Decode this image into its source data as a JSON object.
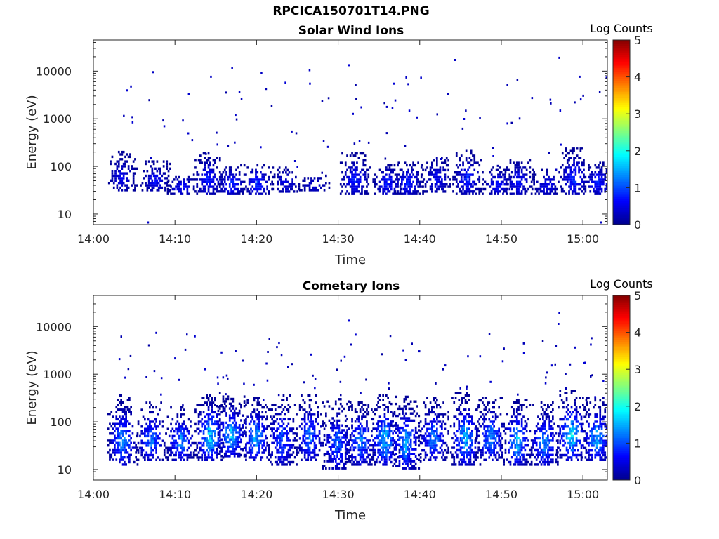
{
  "page": {
    "title": "RPCICA150701T14.PNG"
  },
  "colors": {
    "colormap": [
      "#00008f",
      "#0000ff",
      "#0080ff",
      "#00ffff",
      "#80ff80",
      "#ffff00",
      "#ff8000",
      "#ff0000",
      "#800000"
    ],
    "axis": "#262626"
  },
  "chart_data": [
    {
      "type": "heatmap",
      "title": "Solar Wind Ions",
      "xlabel": "Time",
      "ylabel": "Energy (eV)",
      "x_ticks": [
        "14:00",
        "14:10",
        "14:20",
        "14:30",
        "14:40",
        "14:50",
        "15:00"
      ],
      "x_range_minutes": [
        0,
        63
      ],
      "y_ticks": [
        "10",
        "100",
        "1000",
        "10000"
      ],
      "y_range": [
        6,
        45000
      ],
      "y_scale": "log",
      "colorbar": {
        "label": "Log Counts",
        "range": [
          0,
          5
        ],
        "ticks": [
          "0",
          "1",
          "2",
          "3",
          "4",
          "5"
        ]
      },
      "bursts": [
        {
          "t": 3.4,
          "lo": 30,
          "hi": 200,
          "peak": 0.6
        },
        {
          "t": 7.5,
          "lo": 30,
          "hi": 120,
          "peak": 0.7
        },
        {
          "t": 10.8,
          "lo": 25,
          "hi": 60,
          "peak": 0.8
        },
        {
          "t": 14.0,
          "lo": 25,
          "hi": 180,
          "peak": 0.9
        },
        {
          "t": 16.8,
          "lo": 25,
          "hi": 100,
          "peak": 0.9
        },
        {
          "t": 20.0,
          "lo": 25,
          "hi": 110,
          "peak": 1.0
        },
        {
          "t": 23.5,
          "lo": 28,
          "hi": 90,
          "peak": 0.6
        },
        {
          "t": 27.0,
          "lo": 30,
          "hi": 60,
          "peak": 0.5
        },
        {
          "t": 32.0,
          "lo": 25,
          "hi": 180,
          "peak": 0.9
        },
        {
          "t": 36.0,
          "lo": 25,
          "hi": 110,
          "peak": 0.9
        },
        {
          "t": 38.5,
          "lo": 25,
          "hi": 120,
          "peak": 0.9
        },
        {
          "t": 42.0,
          "lo": 28,
          "hi": 150,
          "peak": 0.7
        },
        {
          "t": 45.8,
          "lo": 25,
          "hi": 200,
          "peak": 0.9
        },
        {
          "t": 49.5,
          "lo": 25,
          "hi": 90,
          "peak": 0.8
        },
        {
          "t": 52.0,
          "lo": 25,
          "hi": 140,
          "peak": 0.8
        },
        {
          "t": 55.5,
          "lo": 25,
          "hi": 80,
          "peak": 0.7
        },
        {
          "t": 58.8,
          "lo": 25,
          "hi": 230,
          "peak": 1.0
        },
        {
          "t": 61.8,
          "lo": 25,
          "hi": 120,
          "peak": 0.9
        }
      ],
      "scatter": [
        {
          "t": 4.5,
          "e": 5000,
          "v": 0.3
        },
        {
          "t": 7.2,
          "e": 10000,
          "v": 0.3
        },
        {
          "t": 14.3,
          "e": 8000,
          "v": 0.3
        },
        {
          "t": 16.9,
          "e": 12000,
          "v": 0.3
        },
        {
          "t": 20.5,
          "e": 9500,
          "v": 0.3
        },
        {
          "t": 26.4,
          "e": 11000,
          "v": 0.3
        },
        {
          "t": 31.2,
          "e": 14000,
          "v": 0.4
        },
        {
          "t": 44.2,
          "e": 18000,
          "v": 0.3
        },
        {
          "t": 57.0,
          "e": 20000,
          "v": 0.3
        },
        {
          "t": 59.5,
          "e": 8000,
          "v": 0.3
        },
        {
          "t": 6.6,
          "e": 7,
          "v": 0.3
        },
        {
          "t": 20.9,
          "e": 6,
          "v": 0.3
        },
        {
          "t": 62.1,
          "e": 7,
          "v": 0.3
        }
      ]
    },
    {
      "type": "heatmap",
      "title": "Cometary Ions",
      "xlabel": "Time",
      "ylabel": "Energy (eV)",
      "x_ticks": [
        "14:00",
        "14:10",
        "14:20",
        "14:30",
        "14:40",
        "14:50",
        "15:00"
      ],
      "x_range_minutes": [
        0,
        63
      ],
      "y_ticks": [
        "10",
        "100",
        "1000",
        "10000"
      ],
      "y_range": [
        6,
        45000
      ],
      "y_scale": "log",
      "colorbar": {
        "label": "Log Counts",
        "range": [
          0,
          5
        ],
        "ticks": [
          "0",
          "1",
          "2",
          "3",
          "4",
          "5"
        ]
      },
      "bursts": [
        {
          "t": 3.5,
          "lo": 12,
          "hi": 350,
          "peak": 1.6
        },
        {
          "t": 7.0,
          "lo": 15,
          "hi": 250,
          "peak": 1.4
        },
        {
          "t": 10.6,
          "lo": 15,
          "hi": 200,
          "peak": 1.5
        },
        {
          "t": 14.2,
          "lo": 15,
          "hi": 400,
          "peak": 2.0
        },
        {
          "t": 16.8,
          "lo": 18,
          "hi": 350,
          "peak": 1.8
        },
        {
          "t": 19.8,
          "lo": 15,
          "hi": 300,
          "peak": 1.8
        },
        {
          "t": 23.0,
          "lo": 12,
          "hi": 350,
          "peak": 1.3
        },
        {
          "t": 26.4,
          "lo": 15,
          "hi": 350,
          "peak": 1.4
        },
        {
          "t": 29.8,
          "lo": 10,
          "hi": 300,
          "peak": 1.3
        },
        {
          "t": 32.6,
          "lo": 12,
          "hi": 250,
          "peak": 1.5
        },
        {
          "t": 35.6,
          "lo": 12,
          "hi": 350,
          "peak": 1.9
        },
        {
          "t": 38.2,
          "lo": 10,
          "hi": 350,
          "peak": 1.7
        },
        {
          "t": 41.6,
          "lo": 15,
          "hi": 300,
          "peak": 1.5
        },
        {
          "t": 45.5,
          "lo": 12,
          "hi": 400,
          "peak": 1.8
        },
        {
          "t": 48.6,
          "lo": 15,
          "hi": 300,
          "peak": 1.6
        },
        {
          "t": 51.8,
          "lo": 12,
          "hi": 300,
          "peak": 1.8
        },
        {
          "t": 55.2,
          "lo": 12,
          "hi": 250,
          "peak": 1.6
        },
        {
          "t": 58.5,
          "lo": 15,
          "hi": 450,
          "peak": 2.1
        },
        {
          "t": 61.6,
          "lo": 15,
          "hi": 300,
          "peak": 1.8
        }
      ],
      "scatter": [
        {
          "t": 15.6,
          "e": 3000,
          "v": 0.3
        },
        {
          "t": 31.2,
          "e": 14000,
          "v": 0.4
        },
        {
          "t": 45.8,
          "e": 2500,
          "v": 0.3
        },
        {
          "t": 47.3,
          "e": 2500,
          "v": 0.3
        },
        {
          "t": 57.0,
          "e": 20000,
          "v": 0.3
        },
        {
          "t": 56.9,
          "e": 12000,
          "v": 0.3
        },
        {
          "t": 60.0,
          "e": 1800,
          "v": 0.4
        },
        {
          "t": 10.4,
          "e": 800,
          "v": 0.3
        },
        {
          "t": 15.8,
          "e": 900,
          "v": 0.3
        }
      ]
    }
  ]
}
